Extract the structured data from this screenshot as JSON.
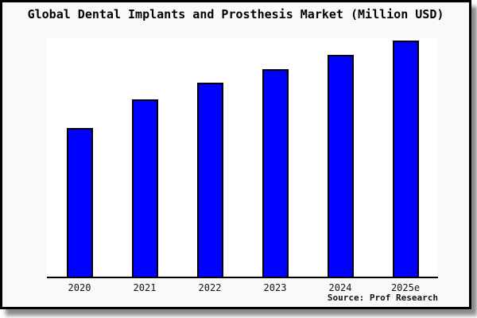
{
  "title": "Global Dental Implants and Prosthesis Market (Million USD)",
  "source": "Source: Prof Research",
  "colors": {
    "bar_fill": "#0000ff",
    "bar_border": "#000000",
    "frame_bg": "#f9f9f9",
    "plot_bg": "#ffffff",
    "axis": "#000000"
  },
  "chart_data": {
    "type": "bar",
    "title": "Global Dental Implants and Prosthesis Market (Million USD)",
    "categories": [
      "2020",
      "2021",
      "2022",
      "2023",
      "2024",
      "2025e"
    ],
    "values": [
      63,
      75,
      82,
      88,
      94,
      100
    ],
    "note": "No y-axis, tick labels or gridlines are shown; values are relative bar heights estimated from pixels with 2025e = 100",
    "xlabel": "",
    "ylabel": "",
    "ylim": [
      0,
      101
    ],
    "grid": false,
    "legend": false,
    "bar_color": "#0000ff"
  }
}
